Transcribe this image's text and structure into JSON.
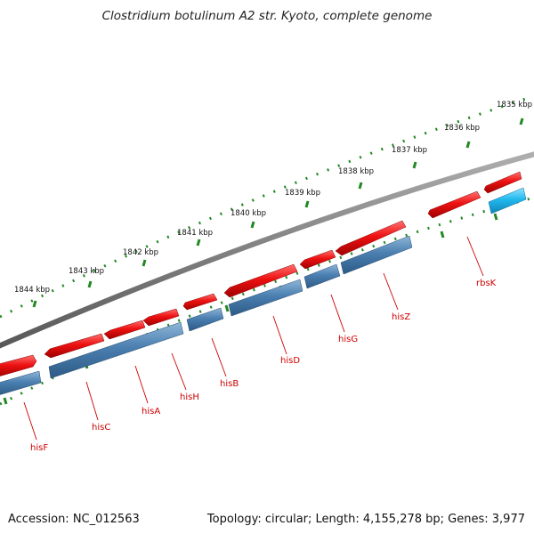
{
  "title": "Clostridium botulinum A2 str. Kyoto, complete genome",
  "footer": {
    "accession": "Accession: NC_012563",
    "summary": "Topology: circular; Length: 4,155,278 bp; Genes: 3,977"
  },
  "scale": {
    "unit": "kbp",
    "labels": [
      "1835 kbp",
      "1836 kbp",
      "1837 kbp",
      "1838 kbp",
      "1839 kbp",
      "1840 kbp",
      "1841 kbp",
      "1842 kbp",
      "1843 kbp",
      "1844 kbp"
    ]
  },
  "genes": [
    {
      "name": "hisF"
    },
    {
      "name": "hisC"
    },
    {
      "name": "hisA"
    },
    {
      "name": "hisH"
    },
    {
      "name": "hisB"
    },
    {
      "name": "hisD"
    },
    {
      "name": "hisG"
    },
    {
      "name": "hisZ"
    },
    {
      "name": "rbsK"
    }
  ],
  "colors": {
    "backbone": "#808080",
    "forward_feature": "#ee1111",
    "cds_feature": "#4a7fb0",
    "highlight_cds": "#22b8ee",
    "tick": "#228822",
    "gene_label": "#cc0000"
  }
}
